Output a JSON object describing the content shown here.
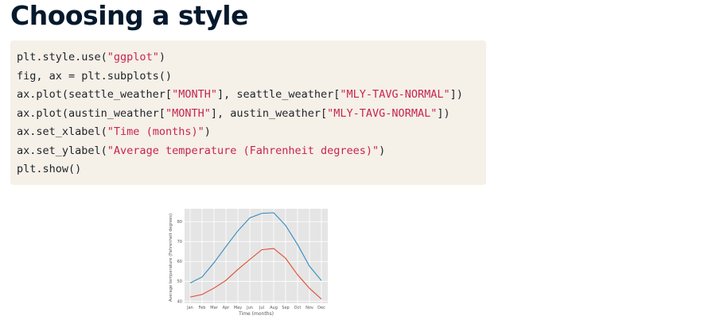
{
  "page": {
    "title": "Choosing a style"
  },
  "code": {
    "lines": [
      [
        {
          "t": "plt.style.use("
        },
        {
          "t": "\"ggplot\"",
          "s": 1
        },
        {
          "t": ")"
        }
      ],
      [
        {
          "t": "fig, ax = plt.subplots()"
        }
      ],
      [
        {
          "t": "ax.plot(seattle_weather["
        },
        {
          "t": "\"MONTH\"",
          "s": 1
        },
        {
          "t": "], seattle_weather["
        },
        {
          "t": "\"MLY-TAVG-NORMAL\"",
          "s": 1
        },
        {
          "t": "])"
        }
      ],
      [
        {
          "t": "ax.plot(austin_weather["
        },
        {
          "t": "\"MONTH\"",
          "s": 1
        },
        {
          "t": "], austin_weather["
        },
        {
          "t": "\"MLY-TAVG-NORMAL\"",
          "s": 1
        },
        {
          "t": "])"
        }
      ],
      [
        {
          "t": "ax.set_xlabel("
        },
        {
          "t": "\"Time (months)\"",
          "s": 1
        },
        {
          "t": ")"
        }
      ],
      [
        {
          "t": "ax.set_ylabel("
        },
        {
          "t": "\"Average temperature (Fahrenheit degrees)\"",
          "s": 1
        },
        {
          "t": ")"
        }
      ],
      [
        {
          "t": "plt.show()"
        }
      ]
    ],
    "string_color": "#c7254e",
    "background_color": "#f5f0e8"
  },
  "chart_data": {
    "type": "line",
    "style": "ggplot",
    "categories": [
      "Jan",
      "Feb",
      "Mar",
      "Apr",
      "May",
      "Jun",
      "Jul",
      "Aug",
      "Sep",
      "Oct",
      "Nov",
      "Dec"
    ],
    "series": [
      {
        "values": [
          49.2,
          52.2,
          59.4,
          67.5,
          75.4,
          81.9,
          84.2,
          84.5,
          78.1,
          68.5,
          57.6,
          50.4
        ],
        "color": "#348abd"
      },
      {
        "values": [
          42.1,
          43.4,
          46.6,
          50.5,
          56.0,
          61.0,
          65.9,
          66.5,
          61.6,
          53.3,
          46.5,
          41.1
        ],
        "color": "#e24a33"
      }
    ],
    "xlabel": "Time (months)",
    "ylabel": "Average temperature (Fahrenheit degrees)",
    "yticks": [
      40,
      50,
      60,
      70,
      80
    ],
    "ylim": [
      39.0,
      86.5
    ],
    "grid": true,
    "background_color": "#e5e5e5"
  }
}
